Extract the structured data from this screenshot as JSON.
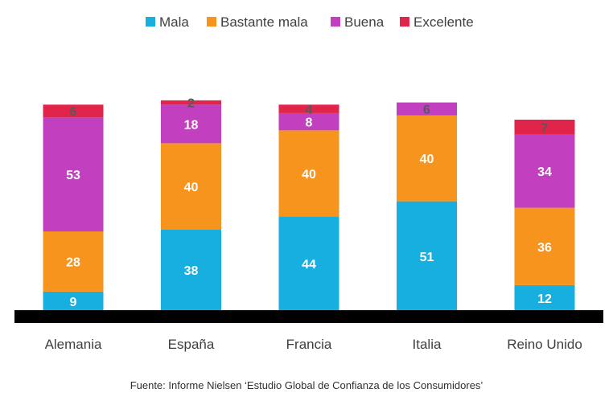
{
  "chart_data": {
    "type": "bar",
    "stacked": true,
    "categories": [
      "Alemania",
      "España",
      "Francia",
      "Italia",
      "Reino Unido"
    ],
    "series": [
      {
        "name": "Mala",
        "color": "#17aee0",
        "values": [
          9,
          38,
          44,
          51,
          12
        ]
      },
      {
        "name": "Bastante mala",
        "color": "#f7941d",
        "values": [
          28,
          40,
          40,
          40,
          36
        ]
      },
      {
        "name": "Buena",
        "color": "#c23fbf",
        "values": [
          53,
          18,
          8,
          6,
          34
        ]
      },
      {
        "name": "Excelente",
        "color": "#e1244a",
        "values": [
          6,
          2,
          4,
          0,
          7
        ]
      }
    ],
    "legend_position": "top-center",
    "title": "",
    "xlabel": "",
    "ylabel": "",
    "ylim": [
      0,
      100
    ]
  },
  "source": "Fuente: Informe Nielsen ‘Estudio Global de Confianza de los Consumidores’"
}
